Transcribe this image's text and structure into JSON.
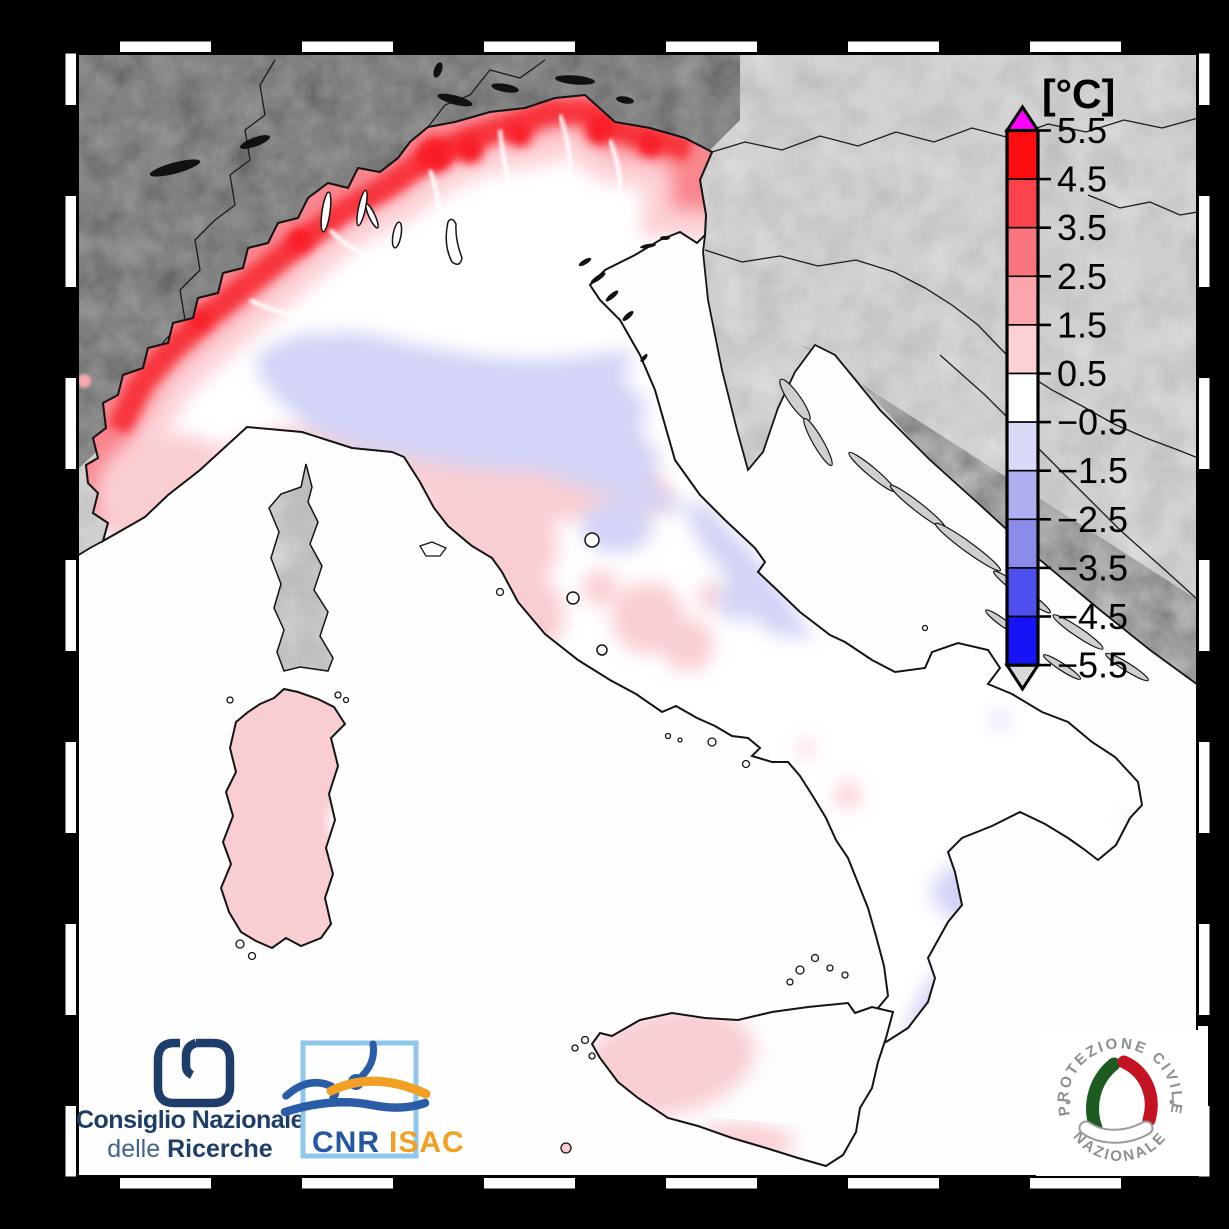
{
  "figure": {
    "kind": "temperature_anomaly_map",
    "region": "Italy and surrounding countries",
    "colorbar": {
      "title": "[°C]",
      "tick_labels": [
        "5.5",
        "4.5",
        "3.5",
        "2.5",
        "1.5",
        "0.5",
        "−0.5",
        "−1.5",
        "−2.5",
        "−3.5",
        "−4.5",
        "−5.5"
      ],
      "tick_values": [
        5.5,
        4.5,
        3.5,
        2.5,
        1.5,
        0.5,
        -0.5,
        -1.5,
        -2.5,
        -3.5,
        -4.5,
        -5.5
      ],
      "segment_colors_top_to_bottom": [
        "#fb0d12",
        "#fa434b",
        "#f9767e",
        "#fba6ac",
        "#fdd0d4",
        "#ffffff",
        "#d9daf7",
        "#aeaff1",
        "#8b8cea",
        "#4d4fee",
        "#1414f4"
      ],
      "over_arrow_color": "#ff00ff",
      "under_arrow_color": "#d9d9d9"
    },
    "visible_pattern": {
      "strong_positive": "Alpine arc of northern Italy (~+1.5 to +4.5)",
      "weak_negative": "Po Valley plain, central Adriatic belt, Umbria, Calabrian uplands (~−0.5 to −1.5)",
      "weak_positive": "Piedmont, Emilia foothills, Tuscany, Sardinia, western Sicily (~+0.5 to +1.5)",
      "near_zero": "most of peninsular Italy and eastern Sicily"
    }
  },
  "logos": {
    "cnr": {
      "line1": "Consiglio Nazionale",
      "line2_light": "delle ",
      "line2_bold": "Ricerche"
    },
    "isac": {
      "cnr_label": "CNR",
      "isac_label": "ISAC"
    },
    "protezione_civile": {
      "arc_top": "PROTEZIONE CIVILE",
      "arc_bottom": "NAZIONALE"
    }
  }
}
